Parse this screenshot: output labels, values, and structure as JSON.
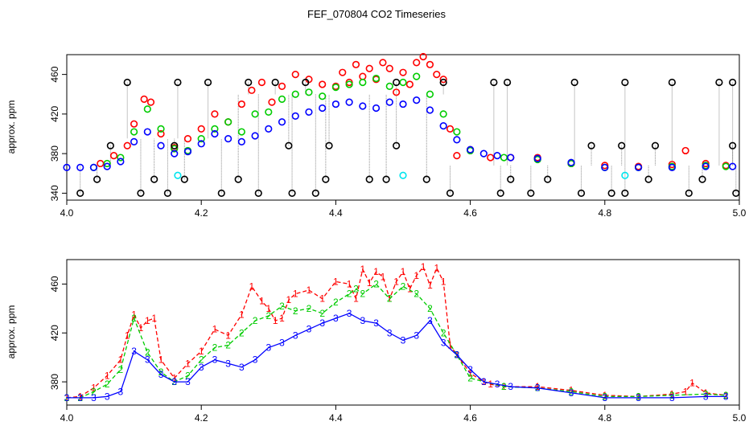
{
  "title": "FEF_070804  CO2 Timeseries",
  "colors": {
    "black": "#000000",
    "red": "#ff0000",
    "green": "#00cc00",
    "blue": "#0000ff",
    "cyan": "#00e5ee",
    "gray": "#8c8c8c"
  },
  "chart_data": [
    {
      "type": "scatter",
      "panel": "top",
      "title": "FEF_070804  CO2 Timeseries",
      "xlabel": "",
      "ylabel": "approx. ppm",
      "xlim": [
        4.0,
        5.0
      ],
      "ylim": [
        333,
        480
      ],
      "xticks": [
        "4.0",
        "4.2",
        "4.4",
        "4.6",
        "4.8",
        "5.0"
      ],
      "yticks": [
        "340",
        "380",
        "420",
        "460"
      ],
      "grid": false,
      "legend": "none",
      "series": [
        {
          "color": "red",
          "x": [
            4.05,
            4.07,
            4.09,
            4.1,
            4.115,
            4.125,
            4.14,
            4.16,
            4.18,
            4.2,
            4.22,
            4.24,
            4.26,
            4.275,
            4.29,
            4.305,
            4.32,
            4.34,
            4.36,
            4.38,
            4.4,
            4.41,
            4.42,
            4.43,
            4.44,
            4.45,
            4.46,
            4.47,
            4.48,
            4.49,
            4.5,
            4.51,
            4.52,
            4.53,
            4.54,
            4.55,
            4.56,
            4.57,
            4.58,
            4.6,
            4.63,
            4.66,
            4.7,
            4.75,
            4.8,
            4.85,
            4.9,
            4.92,
            4.95,
            4.98
          ],
          "y": [
            370,
            378,
            388,
            410,
            435,
            432,
            400,
            386,
            395,
            405,
            420,
            412,
            430,
            444,
            452,
            432,
            448,
            460,
            455,
            450,
            448,
            462,
            452,
            470,
            458,
            466,
            455,
            472,
            466,
            442,
            462,
            450,
            472,
            478,
            470,
            460,
            455,
            405,
            378,
            384,
            376,
            376,
            376,
            370,
            368,
            367,
            369,
            383,
            370,
            368
          ]
        },
        {
          "color": "green",
          "x": [
            4.04,
            4.06,
            4.08,
            4.1,
            4.12,
            4.14,
            4.16,
            4.18,
            4.2,
            4.22,
            4.24,
            4.26,
            4.28,
            4.3,
            4.32,
            4.34,
            4.36,
            4.38,
            4.4,
            4.42,
            4.44,
            4.46,
            4.48,
            4.5,
            4.52,
            4.54,
            4.56,
            4.58,
            4.6,
            4.65,
            4.7,
            4.75,
            4.8,
            4.85,
            4.9,
            4.95,
            4.98
          ],
          "y": [
            366,
            370,
            376,
            402,
            425,
            405,
            385,
            383,
            395,
            405,
            412,
            402,
            420,
            422,
            435,
            440,
            442,
            438,
            447,
            450,
            452,
            456,
            448,
            452,
            458,
            440,
            420,
            402,
            383,
            376,
            374,
            370,
            366,
            366,
            367,
            368,
            367
          ]
        },
        {
          "color": "blue",
          "x": [
            4.0,
            4.02,
            4.04,
            4.06,
            4.08,
            4.1,
            4.12,
            4.14,
            4.16,
            4.18,
            4.2,
            4.22,
            4.24,
            4.26,
            4.28,
            4.3,
            4.32,
            4.34,
            4.36,
            4.38,
            4.4,
            4.42,
            4.44,
            4.46,
            4.48,
            4.5,
            4.52,
            4.54,
            4.56,
            4.58,
            4.6,
            4.62,
            4.64,
            4.66,
            4.7,
            4.75,
            4.8,
            4.85,
            4.9,
            4.95,
            4.99
          ],
          "y": [
            366,
            366,
            366,
            367,
            372,
            392,
            402,
            388,
            380,
            382,
            390,
            400,
            395,
            392,
            398,
            405,
            412,
            418,
            422,
            426,
            430,
            432,
            428,
            426,
            432,
            430,
            434,
            424,
            408,
            394,
            384,
            380,
            378,
            376,
            375,
            371,
            366,
            366,
            366,
            367,
            367
          ]
        },
        {
          "color": "black",
          "x": [
            4.02,
            4.045,
            4.065,
            4.09,
            4.11,
            4.13,
            4.15,
            4.16,
            4.165,
            4.175,
            4.21,
            4.23,
            4.255,
            4.27,
            4.285,
            4.31,
            4.33,
            4.335,
            4.355,
            4.37,
            4.385,
            4.39,
            4.45,
            4.475,
            4.49,
            4.49,
            4.535,
            4.56,
            4.57,
            4.635,
            4.645,
            4.655,
            4.66,
            4.69,
            4.715,
            4.755,
            4.765,
            4.78,
            4.81,
            4.825,
            4.83,
            4.83,
            4.865,
            4.875,
            4.9,
            4.925,
            4.945,
            4.97,
            4.99,
            4.99,
            4.995
          ],
          "y": [
            340,
            354,
            388,
            452,
            340,
            354,
            340,
            388,
            452,
            354,
            452,
            340,
            354,
            452,
            340,
            452,
            388,
            340,
            452,
            340,
            354,
            388,
            354,
            354,
            452,
            388,
            354,
            452,
            340,
            452,
            340,
            452,
            354,
            340,
            354,
            452,
            340,
            388,
            340,
            388,
            452,
            340,
            354,
            388,
            452,
            340,
            354,
            452,
            452,
            388,
            340
          ]
        },
        {
          "color": "cyan",
          "x": [
            4.165,
            4.5,
            4.83
          ],
          "y": [
            358,
            358,
            358
          ]
        }
      ]
    },
    {
      "type": "line",
      "panel": "bottom",
      "title": "",
      "xlabel": "",
      "ylabel": "approx. ppm",
      "xlim": [
        4.0,
        5.0
      ],
      "ylim": [
        361,
        480
      ],
      "xticks": [
        "4.0",
        "4.2",
        "4.4",
        "4.6",
        "4.8",
        "5.0"
      ],
      "yticks": [
        "380",
        "420",
        "460"
      ],
      "grid": false,
      "legend": "none",
      "series": [
        {
          "color": "red",
          "marker": "1",
          "x": [
            4.0,
            4.02,
            4.04,
            4.06,
            4.08,
            4.09,
            4.1,
            4.11,
            4.12,
            4.13,
            4.14,
            4.16,
            4.18,
            4.2,
            4.22,
            4.24,
            4.26,
            4.275,
            4.29,
            4.3,
            4.31,
            4.32,
            4.33,
            4.34,
            4.36,
            4.38,
            4.4,
            4.42,
            4.43,
            4.44,
            4.45,
            4.46,
            4.47,
            4.48,
            4.49,
            4.5,
            4.51,
            4.52,
            4.53,
            4.54,
            4.55,
            4.56,
            4.57,
            4.58,
            4.6,
            4.62,
            4.63,
            4.65,
            4.7,
            4.75,
            4.8,
            4.85,
            4.9,
            4.92,
            4.93,
            4.95,
            4.98
          ],
          "y": [
            367,
            368,
            375,
            385,
            398,
            418,
            435,
            424,
            430,
            432,
            398,
            383,
            395,
            405,
            423,
            418,
            435,
            458,
            446,
            440,
            430,
            432,
            447,
            452,
            455,
            448,
            462,
            460,
            448,
            472,
            461,
            470,
            466,
            448,
            462,
            470,
            456,
            467,
            474,
            459,
            473,
            462,
            410,
            402,
            387,
            380,
            378,
            376,
            376,
            373,
            369,
            368,
            370,
            372,
            379,
            371,
            369
          ]
        },
        {
          "color": "green",
          "marker": "2",
          "x": [
            4.0,
            4.02,
            4.04,
            4.06,
            4.08,
            4.1,
            4.12,
            4.14,
            4.16,
            4.18,
            4.2,
            4.22,
            4.24,
            4.26,
            4.28,
            4.3,
            4.32,
            4.34,
            4.36,
            4.38,
            4.4,
            4.42,
            4.43,
            4.44,
            4.46,
            4.48,
            4.5,
            4.52,
            4.54,
            4.56,
            4.58,
            4.6,
            4.65,
            4.7,
            4.75,
            4.8,
            4.85,
            4.9,
            4.95,
            4.98
          ],
          "y": [
            367,
            367,
            372,
            378,
            390,
            432,
            404,
            388,
            380,
            385,
            398,
            408,
            410,
            420,
            430,
            434,
            442,
            438,
            440,
            436,
            445,
            452,
            456,
            452,
            460,
            448,
            458,
            452,
            440,
            420,
            402,
            383,
            376,
            375,
            372,
            368,
            368,
            369,
            370,
            369
          ]
        },
        {
          "color": "blue",
          "marker": "3",
          "x": [
            4.0,
            4.02,
            4.04,
            4.06,
            4.08,
            4.1,
            4.12,
            4.14,
            4.16,
            4.18,
            4.2,
            4.22,
            4.24,
            4.26,
            4.28,
            4.3,
            4.32,
            4.34,
            4.36,
            4.38,
            4.4,
            4.42,
            4.44,
            4.46,
            4.48,
            4.5,
            4.52,
            4.54,
            4.56,
            4.58,
            4.6,
            4.62,
            4.64,
            4.66,
            4.7,
            4.75,
            4.8,
            4.85,
            4.9,
            4.95,
            4.98
          ],
          "y": [
            367,
            367,
            367,
            368,
            372,
            405,
            398,
            386,
            380,
            380,
            392,
            398,
            395,
            392,
            398,
            408,
            412,
            418,
            423,
            428,
            432,
            436,
            430,
            428,
            420,
            414,
            418,
            430,
            412,
            402,
            390,
            380,
            378,
            376,
            375,
            371,
            367,
            367,
            367,
            368,
            368
          ]
        }
      ]
    }
  ]
}
